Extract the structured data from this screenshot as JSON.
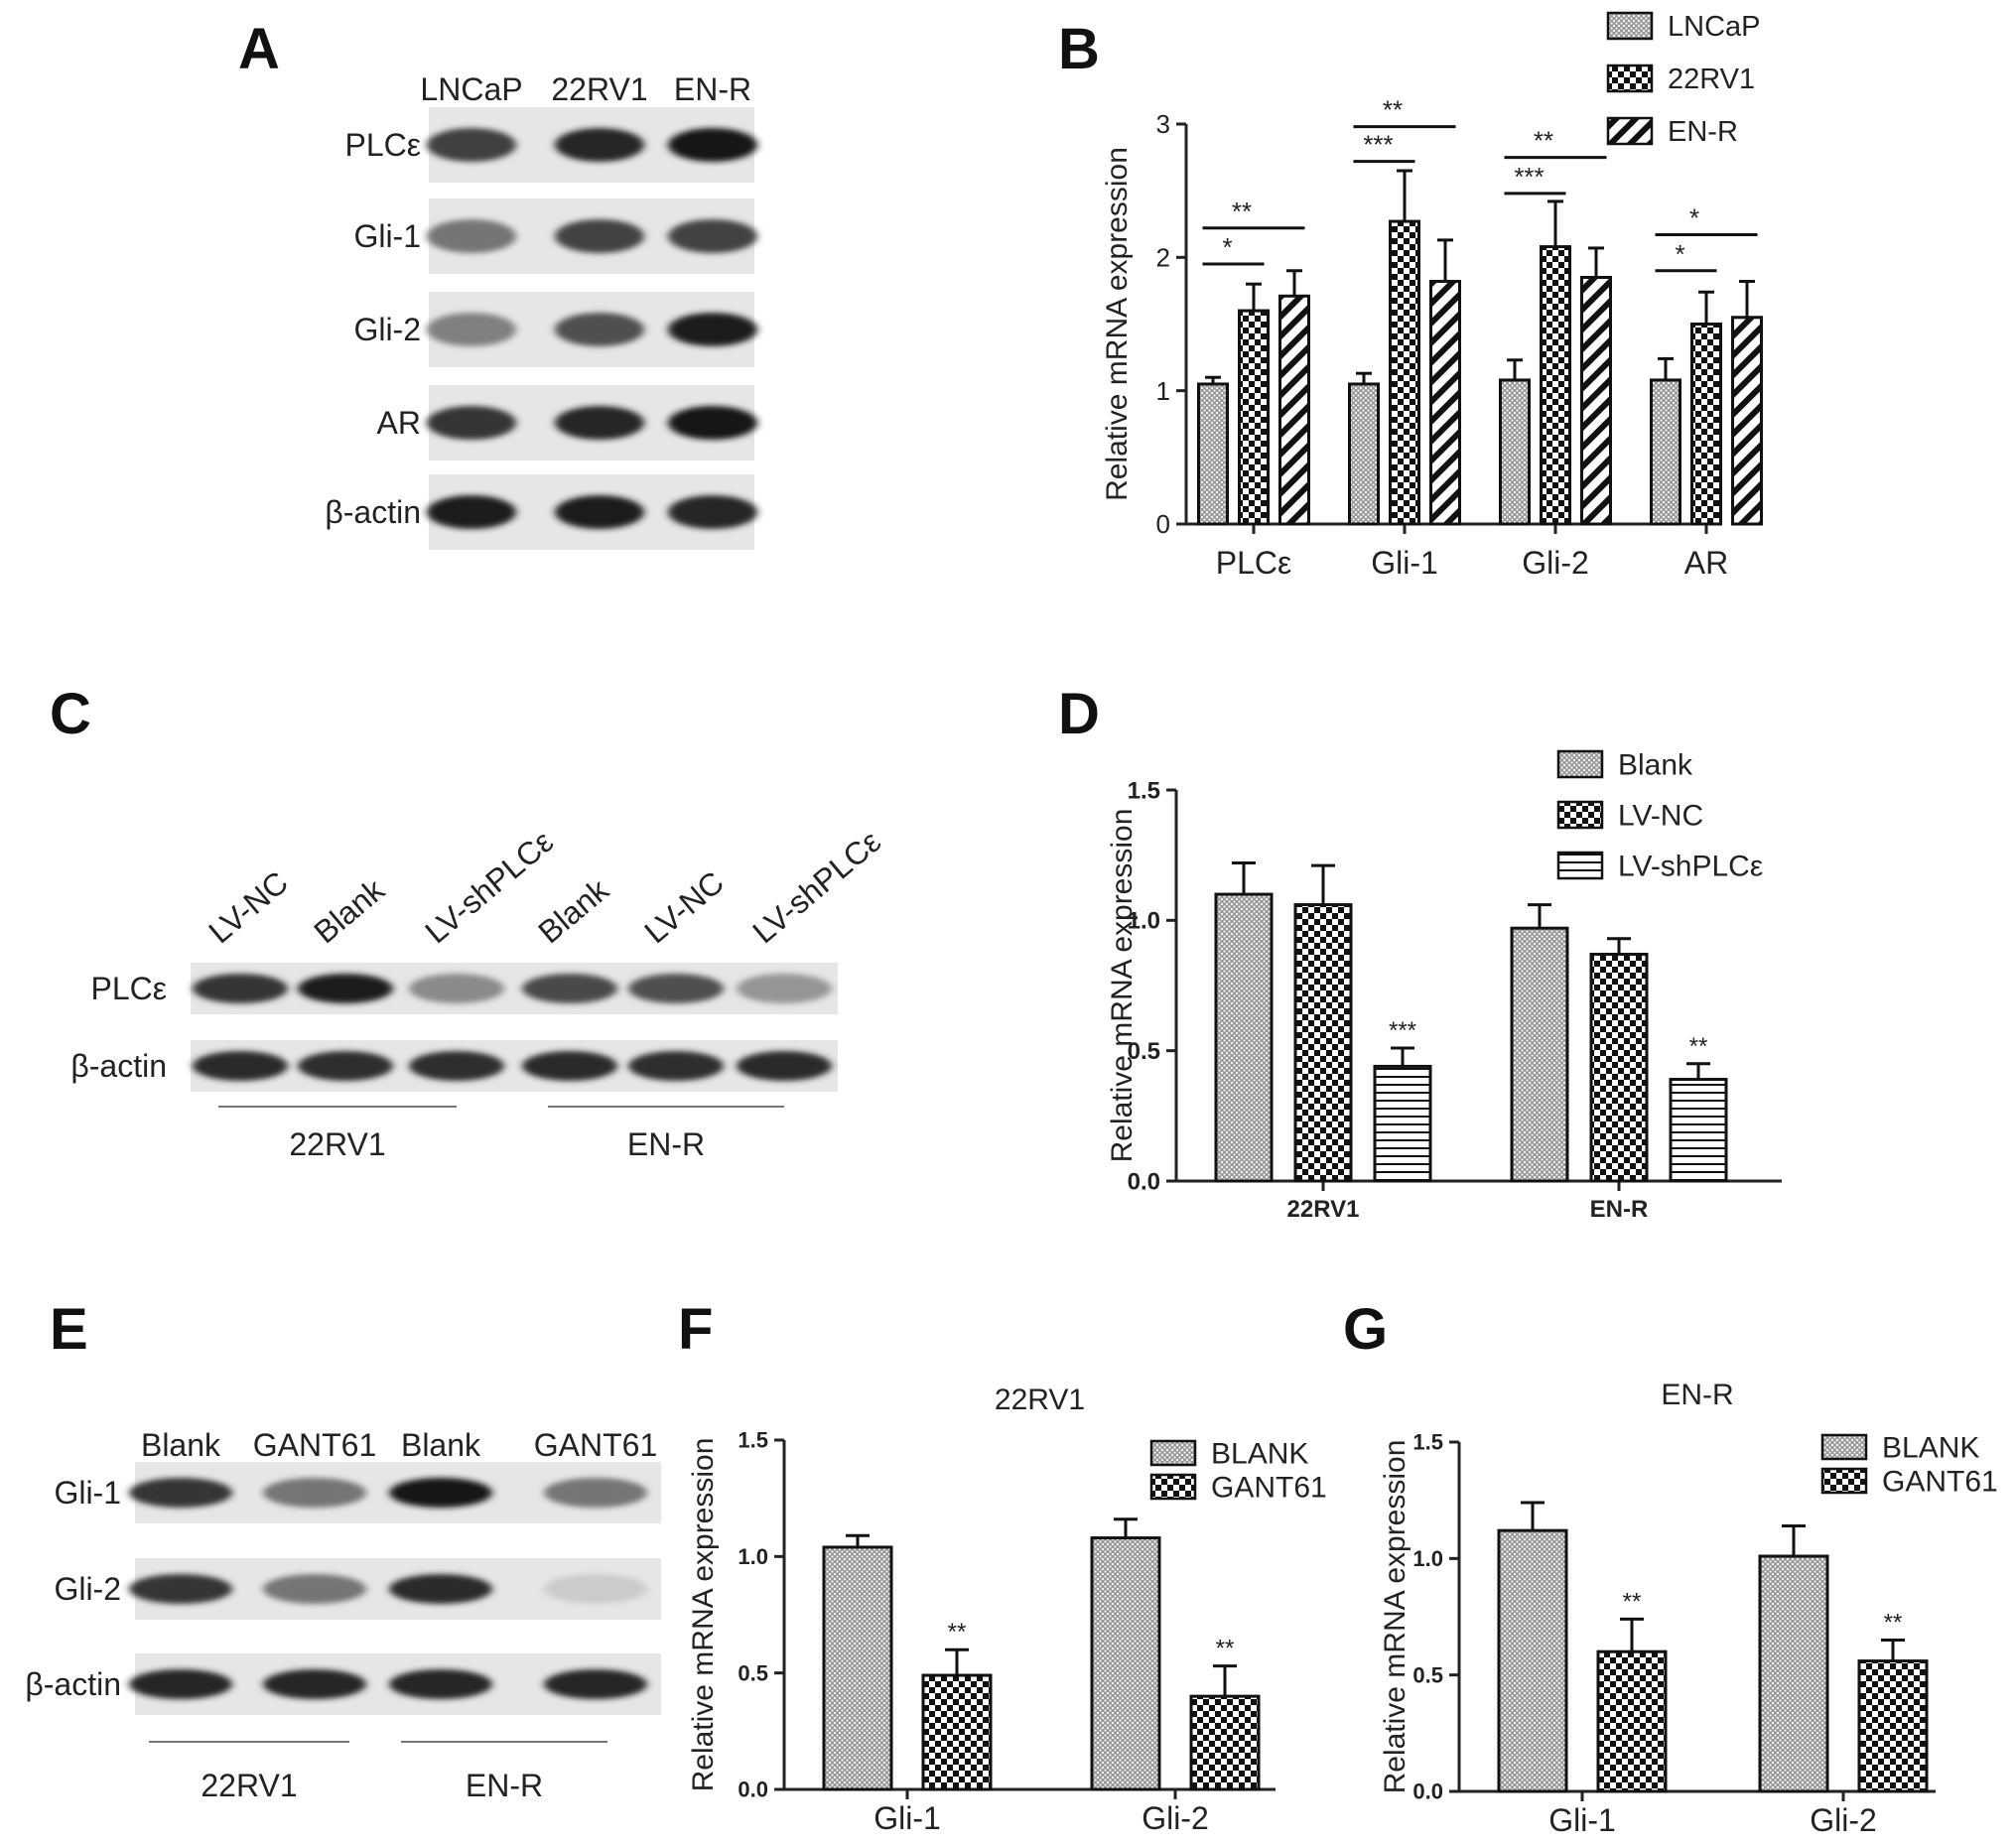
{
  "panel_letters": [
    "A",
    "B",
    "C",
    "D",
    "E",
    "F",
    "G"
  ],
  "blots": {
    "A": {
      "lanes": [
        "LNCaP",
        "22RV1",
        "EN-R"
      ],
      "rows": [
        {
          "label": "PLCε",
          "intensity": [
            0.8,
            0.92,
            1.0
          ]
        },
        {
          "label": "Gli-1",
          "intensity": [
            0.55,
            0.78,
            0.78
          ]
        },
        {
          "label": "Gli-2",
          "intensity": [
            0.5,
            0.72,
            0.95
          ]
        },
        {
          "label": "AR",
          "intensity": [
            0.85,
            0.92,
            1.0
          ]
        },
        {
          "label": "β-actin",
          "intensity": [
            0.95,
            0.95,
            0.92
          ]
        }
      ]
    },
    "C": {
      "lanes": [
        "LV-NC",
        "Blank",
        "LV-shPLCε",
        "Blank",
        "LV-NC",
        "LV-shPLCε"
      ],
      "rows": [
        {
          "label": "PLCε",
          "intensity": [
            0.85,
            0.95,
            0.45,
            0.75,
            0.72,
            0.4
          ]
        },
        {
          "label": "β-actin",
          "intensity": [
            0.9,
            0.88,
            0.88,
            0.9,
            0.88,
            0.9
          ]
        }
      ],
      "groups": [
        "22RV1",
        "EN-R"
      ]
    },
    "E": {
      "lanes": [
        "Blank",
        "GANT61",
        "Blank",
        "GANT61"
      ],
      "rows": [
        {
          "label": "Gli-1",
          "intensity": [
            0.85,
            0.55,
            1.0,
            0.55
          ]
        },
        {
          "label": "Gli-2",
          "intensity": [
            0.85,
            0.55,
            0.9,
            0.15
          ]
        },
        {
          "label": "β-actin",
          "intensity": [
            0.92,
            0.92,
            0.92,
            0.92
          ]
        }
      ],
      "groups": [
        "22RV1",
        "EN-R"
      ]
    }
  },
  "chart_data": [
    {
      "panel": "B",
      "type": "bar",
      "title": "",
      "xlabel": "",
      "ylabel": "Relative mRNA expression",
      "ylim": [
        0,
        3
      ],
      "yticks": [
        "0",
        "1",
        "2",
        "3"
      ],
      "categories": [
        "PLCε",
        "Gli-1",
        "Gli-2",
        "AR"
      ],
      "series": [
        {
          "name": "LNCaP",
          "values": [
            1.05,
            1.05,
            1.08,
            1.08
          ],
          "errors": [
            0.05,
            0.08,
            0.15,
            0.16
          ]
        },
        {
          "name": "22RV1",
          "values": [
            1.6,
            2.27,
            2.08,
            1.5
          ],
          "errors": [
            0.2,
            0.38,
            0.34,
            0.24
          ]
        },
        {
          "name": "EN-R",
          "values": [
            1.71,
            1.82,
            1.85,
            1.55
          ],
          "errors": [
            0.19,
            0.31,
            0.22,
            0.27
          ]
        }
      ],
      "significance": [
        {
          "category": 0,
          "from": 0,
          "to": 1,
          "y": 1.95,
          "label": "*"
        },
        {
          "category": 0,
          "from": 0,
          "to": 2,
          "y": 2.22,
          "label": "**"
        },
        {
          "category": 1,
          "from": 0,
          "to": 1,
          "y": 2.72,
          "label": "***"
        },
        {
          "category": 1,
          "from": 0,
          "to": 2,
          "y": 2.98,
          "label": "**"
        },
        {
          "category": 2,
          "from": 0,
          "to": 1,
          "y": 2.48,
          "label": "***"
        },
        {
          "category": 2,
          "from": 0,
          "to": 2,
          "y": 2.75,
          "label": "**"
        },
        {
          "category": 3,
          "from": 0,
          "to": 1,
          "y": 1.9,
          "label": "*"
        },
        {
          "category": 3,
          "from": 0,
          "to": 2,
          "y": 2.17,
          "label": "*"
        }
      ],
      "legend": "top-right"
    },
    {
      "panel": "D",
      "type": "bar",
      "title": "",
      "xlabel": "",
      "ylabel": "Relative mRNA expression",
      "ylim": [
        0,
        1.5
      ],
      "yticks": [
        "0.0",
        "0.5",
        "1.0",
        "1.5"
      ],
      "categories": [
        "22RV1",
        "EN-R"
      ],
      "series": [
        {
          "name": "Blank",
          "values": [
            1.1,
            0.97
          ],
          "errors": [
            0.12,
            0.09
          ]
        },
        {
          "name": "LV-NC",
          "values": [
            1.06,
            0.87
          ],
          "errors": [
            0.15,
            0.06
          ]
        },
        {
          "name": "LV-shPLCε",
          "values": [
            0.44,
            0.39
          ],
          "errors": [
            0.07,
            0.06
          ]
        }
      ],
      "annotations": [
        {
          "category": 0,
          "series": 2,
          "label": "***"
        },
        {
          "category": 1,
          "series": 2,
          "label": "**"
        }
      ],
      "legend": "top-right"
    },
    {
      "panel": "F",
      "type": "bar",
      "title": "22RV1",
      "xlabel": "",
      "ylabel": "Relative mRNA expression",
      "ylim": [
        0,
        1.5
      ],
      "yticks": [
        "0.0",
        "0.5",
        "1.0",
        "1.5"
      ],
      "categories": [
        "Gli-1",
        "Gli-2"
      ],
      "series": [
        {
          "name": "BLANK",
          "values": [
            1.04,
            1.08
          ],
          "errors": [
            0.05,
            0.08
          ]
        },
        {
          "name": "GANT61",
          "values": [
            0.49,
            0.4
          ],
          "errors": [
            0.11,
            0.13
          ]
        }
      ],
      "annotations": [
        {
          "category": 0,
          "series": 1,
          "label": "**"
        },
        {
          "category": 1,
          "series": 1,
          "label": "**"
        }
      ],
      "legend": "top-right"
    },
    {
      "panel": "G",
      "type": "bar",
      "title": "EN-R",
      "xlabel": "",
      "ylabel": "Relative mRNA expression",
      "ylim": [
        0,
        1.5
      ],
      "yticks": [
        "0.0",
        "0.5",
        "1.0",
        "1.5"
      ],
      "categories": [
        "Gli-1",
        "Gli-2"
      ],
      "series": [
        {
          "name": "BLANK",
          "values": [
            1.12,
            1.01
          ],
          "errors": [
            0.12,
            0.13
          ]
        },
        {
          "name": "GANT61",
          "values": [
            0.6,
            0.56
          ],
          "errors": [
            0.14,
            0.09
          ]
        }
      ],
      "annotations": [
        {
          "category": 0,
          "series": 1,
          "label": "**"
        },
        {
          "category": 1,
          "series": 1,
          "label": "**"
        }
      ],
      "legend": "top-right"
    }
  ]
}
